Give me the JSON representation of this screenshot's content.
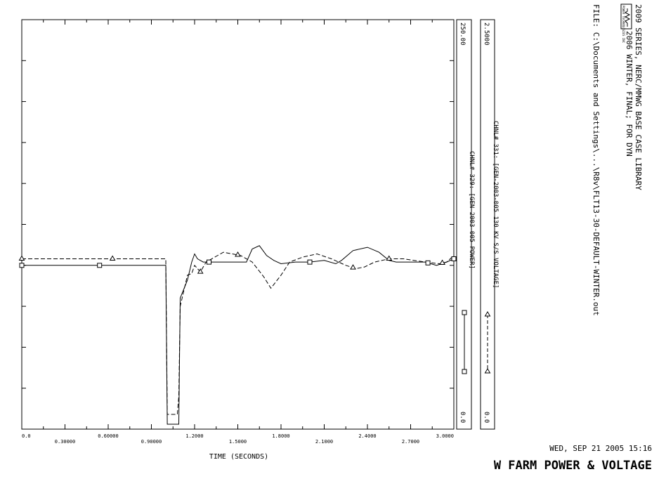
{
  "chart_data": {
    "type": "line",
    "xlabel": "TIME (SECONDS)",
    "xlim": [
      0.0,
      3.0
    ],
    "x_ticks": [
      "0.0",
      "0.30000",
      "0.60000",
      "0.90000",
      "1.2000",
      "1.5000",
      "1.8000",
      "2.1000",
      "2.4000",
      "2.7000",
      "3.0000"
    ],
    "axes": [
      {
        "name": "power",
        "range": [
          0.0,
          250.0
        ],
        "top_label": "250.00",
        "bottom_label": "0.0"
      },
      {
        "name": "voltage",
        "range": [
          0.0,
          2.5
        ],
        "top_label": "2.5000",
        "bottom_label": "0.0"
      }
    ],
    "series": [
      {
        "name": "CHNL# 329: [GEN-2003-005 POWER]",
        "axis": "power",
        "marker": "square",
        "style": "solid",
        "points": [
          [
            0.0,
            100
          ],
          [
            0.54,
            100
          ],
          [
            1.0,
            100
          ],
          [
            1.01,
            3
          ],
          [
            1.09,
            3
          ],
          [
            1.1,
            80
          ],
          [
            1.15,
            91
          ],
          [
            1.18,
            102
          ],
          [
            1.2,
            107
          ],
          [
            1.22,
            104
          ],
          [
            1.26,
            102
          ],
          [
            1.3,
            102
          ],
          [
            1.4,
            102
          ],
          [
            1.5,
            102
          ],
          [
            1.56,
            102
          ],
          [
            1.6,
            110
          ],
          [
            1.65,
            112
          ],
          [
            1.7,
            106
          ],
          [
            1.75,
            103
          ],
          [
            1.8,
            101
          ],
          [
            1.9,
            102
          ],
          [
            2.0,
            102
          ],
          [
            2.1,
            103
          ],
          [
            2.18,
            101
          ],
          [
            2.22,
            103
          ],
          [
            2.3,
            109
          ],
          [
            2.4,
            111
          ],
          [
            2.48,
            108
          ],
          [
            2.55,
            103
          ],
          [
            2.6,
            102
          ],
          [
            2.7,
            102
          ],
          [
            2.8,
            102
          ],
          [
            2.88,
            100
          ],
          [
            2.95,
            102
          ],
          [
            3.0,
            104
          ]
        ],
        "marker_x": [
          0.0,
          0.54,
          1.3,
          2.0,
          2.82,
          3.0
        ]
      },
      {
        "name": "CHNL# 331: [GEN-2003-005 130 KV S/S VOLTAGE]",
        "axis": "voltage",
        "marker": "triangle",
        "style": "dashed",
        "points": [
          [
            0.0,
            1.04
          ],
          [
            0.63,
            1.04
          ],
          [
            1.0,
            1.04
          ],
          [
            1.01,
            0.09
          ],
          [
            1.08,
            0.09
          ],
          [
            1.09,
            0.2
          ],
          [
            1.1,
            0.75
          ],
          [
            1.15,
            0.94
          ],
          [
            1.18,
            0.95
          ],
          [
            1.2,
            1.0
          ],
          [
            1.24,
            0.96
          ],
          [
            1.28,
            1.02
          ],
          [
            1.4,
            1.08
          ],
          [
            1.52,
            1.06
          ],
          [
            1.6,
            1.02
          ],
          [
            1.68,
            0.93
          ],
          [
            1.73,
            0.86
          ],
          [
            1.8,
            0.94
          ],
          [
            1.86,
            1.02
          ],
          [
            1.95,
            1.05
          ],
          [
            2.05,
            1.07
          ],
          [
            2.15,
            1.04
          ],
          [
            2.25,
            1.0
          ],
          [
            2.32,
            0.98
          ],
          [
            2.38,
            0.99
          ],
          [
            2.45,
            1.02
          ],
          [
            2.55,
            1.04
          ],
          [
            2.65,
            1.04
          ],
          [
            2.8,
            1.02
          ],
          [
            2.9,
            1.01
          ],
          [
            2.95,
            1.02
          ],
          [
            3.0,
            1.06
          ]
        ],
        "marker_x": [
          0.0,
          0.63,
          1.24,
          1.5,
          2.3,
          2.55,
          2.92
        ]
      }
    ]
  },
  "header": {
    "line1": "2009 SERIES, NERC/MMWG BASE CASE LIBRARY",
    "line2": "2006 WINTER, FINAL; FOR DYN",
    "file": "FILE: C:\\Documents and Settings\\...\\R8v\\FLT13-30-DEFAULT-WINTER.out",
    "logo_text": "POWER TECHNOLOGIES INC"
  },
  "footer": {
    "date": "WED, SEP 21 2005   15:16",
    "title": "W FARM POWER & VOLTAGE"
  }
}
